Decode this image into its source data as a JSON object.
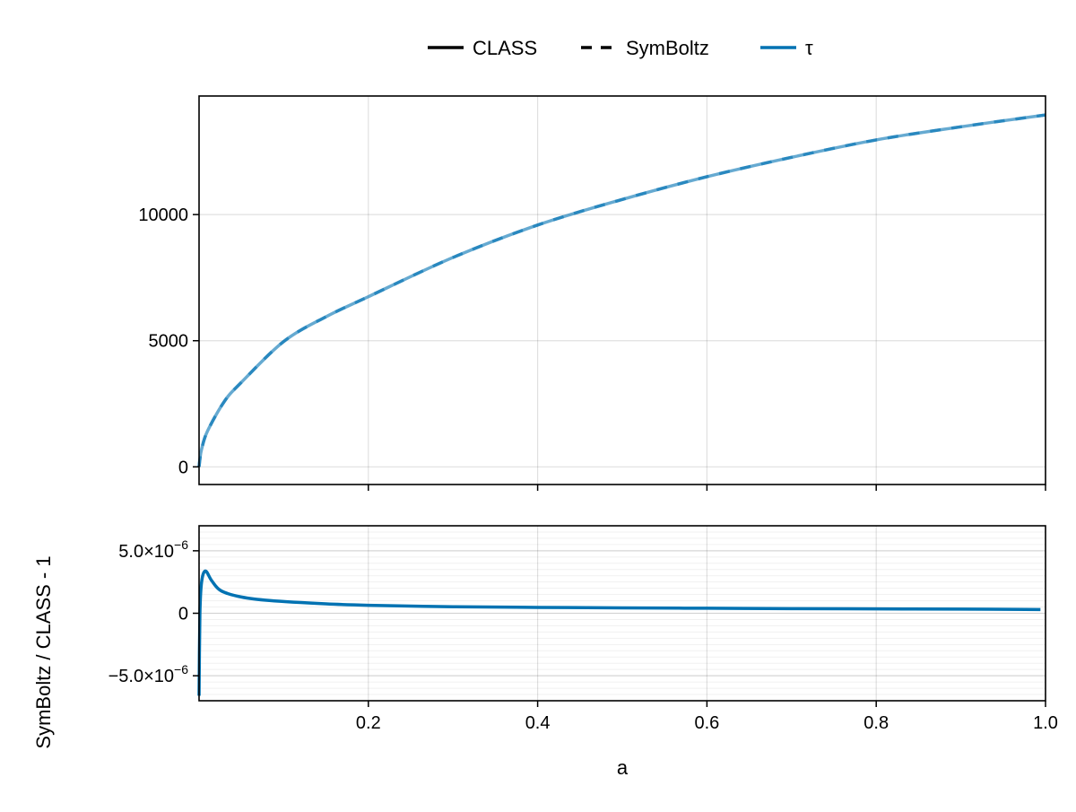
{
  "chart_data": [
    {
      "type": "line",
      "panel": "top",
      "xlim": [
        0,
        1
      ],
      "ylim": [
        -700,
        14700
      ],
      "yticks": [
        0,
        5000,
        10000
      ],
      "ytick_labels": [
        "0",
        "5000",
        "10000"
      ],
      "xticks": [
        0.2,
        0.4,
        0.6,
        0.8,
        1.0
      ],
      "grid": true,
      "legend": {
        "placement": "top-center",
        "entries": [
          {
            "label": "CLASS",
            "style": "solid",
            "color": "#000000"
          },
          {
            "label": "SymBoltz",
            "style": "dashed",
            "color": "#000000"
          },
          {
            "label": "τ",
            "style": "solid",
            "color": "#0072b2"
          }
        ]
      },
      "series": [
        {
          "color": "#0072b2",
          "x": [
            0,
            0.001,
            0.003,
            0.01,
            0.03,
            0.05,
            0.1,
            0.15,
            0.2,
            0.3,
            0.4,
            0.5,
            0.6,
            0.7,
            0.8,
            0.9,
            1.0
          ],
          "y": [
            0,
            300,
            700,
            1420,
            2600,
            3350,
            4970,
            5950,
            6745,
            8300,
            9585,
            10600,
            11500,
            12270,
            12960,
            13480,
            13950
          ]
        }
      ]
    },
    {
      "type": "line",
      "panel": "bottom",
      "xlabel": "a",
      "ylabel": "SymBoltz / CLASS - 1",
      "xlim": [
        0,
        1
      ],
      "ylim": [
        -7e-06,
        7e-06
      ],
      "xticks": [
        0.2,
        0.4,
        0.6,
        0.8,
        1.0
      ],
      "xtick_labels": [
        "0.2",
        "0.4",
        "0.6",
        "0.8",
        "1.0"
      ],
      "yticks": [
        -5e-06,
        0,
        5e-06
      ],
      "ytick_labels": [
        {
          "mantissa": "−5.0×10",
          "exp": "−6"
        },
        {
          "mantissa": "0",
          "exp": ""
        },
        {
          "mantissa": "5.0×10",
          "exp": "−6"
        }
      ],
      "grid": true,
      "minor_grid_step": 5e-07,
      "series": [
        {
          "color": "#0072b2",
          "x": [
            0,
            0.001,
            0.003,
            0.0075,
            0.015,
            0.026,
            0.05,
            0.083,
            0.15,
            0.2,
            0.3,
            0.4,
            0.5,
            0.6,
            0.7,
            0.8,
            0.9,
            0.994
          ],
          "y": [
            -6.6e-06,
            0,
            2.5e-06,
            3.38e-06,
            2.6e-06,
            1.8e-06,
            1.3e-06,
            1.02e-06,
            7.5e-07,
            6.4e-07,
            5.2e-07,
            4.7e-07,
            4.3e-07,
            4e-07,
            3.7e-07,
            3.5e-07,
            3.3e-07,
            3e-07
          ]
        }
      ]
    }
  ]
}
